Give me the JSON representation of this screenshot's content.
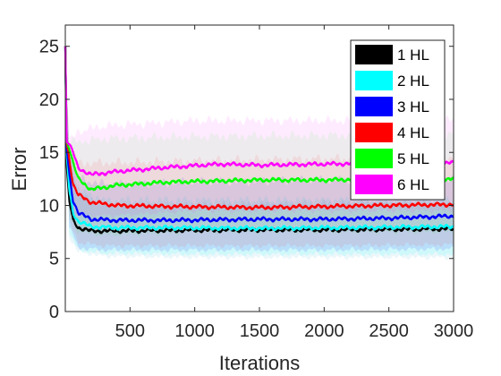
{
  "chart_data": {
    "type": "line",
    "xlabel": "Iterations",
    "ylabel": "Error",
    "xlim": [
      0,
      3000
    ],
    "ylim": [
      0,
      27
    ],
    "xticks": [
      500,
      1000,
      1500,
      2000,
      2500,
      3000
    ],
    "yticks": [
      0,
      5,
      10,
      15,
      20,
      25
    ],
    "x_tick_labels": [
      "500",
      "1000",
      "1500",
      "2000",
      "2500",
      "3000"
    ],
    "y_tick_labels": [
      "0",
      "5",
      "10",
      "15",
      "20",
      "25"
    ],
    "grid": false,
    "legend_position": "top-right",
    "series": [
      {
        "name": "1 HL",
        "color": "#000000",
        "band_color": "#9ad8e8",
        "band_opacity": 0.2,
        "points": [
          [
            0,
            25
          ],
          [
            10,
            14
          ],
          [
            30,
            10.5
          ],
          [
            60,
            8.6
          ],
          [
            100,
            7.9
          ],
          [
            200,
            7.6
          ],
          [
            400,
            7.6
          ],
          [
            800,
            7.65
          ],
          [
            1500,
            7.7
          ],
          [
            2000,
            7.7
          ],
          [
            2500,
            7.75
          ],
          [
            3000,
            7.8
          ]
        ],
        "band_upper": [
          [
            0,
            25
          ],
          [
            30,
            14
          ],
          [
            100,
            11
          ],
          [
            300,
            10
          ],
          [
            1000,
            10
          ],
          [
            2000,
            10.2
          ],
          [
            3000,
            10.2
          ]
        ],
        "band_lower": [
          [
            0,
            25
          ],
          [
            30,
            7
          ],
          [
            100,
            5.6
          ],
          [
            300,
            5.2
          ],
          [
            1000,
            5.1
          ],
          [
            2000,
            5.1
          ],
          [
            3000,
            5.1
          ]
        ]
      },
      {
        "name": "2 HL",
        "color": "#00ffff",
        "band_color": "#00ffff",
        "band_opacity": 0.12,
        "points": [
          [
            0,
            25
          ],
          [
            10,
            15
          ],
          [
            30,
            11.5
          ],
          [
            60,
            9.3
          ],
          [
            100,
            8.5
          ],
          [
            200,
            8.0
          ],
          [
            400,
            7.9
          ],
          [
            800,
            7.9
          ],
          [
            1500,
            7.85
          ],
          [
            2000,
            7.9
          ],
          [
            2500,
            7.95
          ],
          [
            3000,
            8.0
          ]
        ],
        "band_upper": [
          [
            0,
            25
          ],
          [
            30,
            15
          ],
          [
            100,
            11.5
          ],
          [
            300,
            10.5
          ],
          [
            1000,
            10.5
          ],
          [
            2000,
            10.5
          ],
          [
            3000,
            10.6
          ]
        ],
        "band_lower": [
          [
            0,
            25
          ],
          [
            30,
            7.5
          ],
          [
            100,
            5.8
          ],
          [
            300,
            5.5
          ],
          [
            1000,
            5.4
          ],
          [
            2000,
            5.4
          ],
          [
            3000,
            5.4
          ]
        ]
      },
      {
        "name": "3 HL",
        "color": "#0000ff",
        "band_color": "#0000ff",
        "band_opacity": 0.1,
        "points": [
          [
            0,
            25
          ],
          [
            10,
            15.5
          ],
          [
            30,
            13
          ],
          [
            60,
            10.5
          ],
          [
            100,
            9.3
          ],
          [
            200,
            8.7
          ],
          [
            400,
            8.6
          ],
          [
            800,
            8.6
          ],
          [
            1500,
            8.7
          ],
          [
            2000,
            8.7
          ],
          [
            2500,
            8.8
          ],
          [
            3000,
            9.0
          ]
        ],
        "band_upper": [
          [
            0,
            25
          ],
          [
            30,
            15.5
          ],
          [
            100,
            12.5
          ],
          [
            300,
            12
          ],
          [
            1000,
            12.2
          ],
          [
            2000,
            12.4
          ],
          [
            3000,
            12.6
          ]
        ],
        "band_lower": [
          [
            0,
            25
          ],
          [
            30,
            8
          ],
          [
            100,
            6
          ],
          [
            300,
            5.8
          ],
          [
            1000,
            5.8
          ],
          [
            2000,
            5.8
          ],
          [
            3000,
            5.9
          ]
        ]
      },
      {
        "name": "4 HL",
        "color": "#ff0000",
        "band_color": "#ff0000",
        "band_opacity": 0.08,
        "points": [
          [
            0,
            25
          ],
          [
            10,
            16
          ],
          [
            30,
            14.5
          ],
          [
            60,
            12
          ],
          [
            100,
            11
          ],
          [
            200,
            10.3
          ],
          [
            400,
            10.0
          ],
          [
            800,
            9.9
          ],
          [
            1500,
            9.8
          ],
          [
            2000,
            9.9
          ],
          [
            2500,
            10.0
          ],
          [
            3000,
            10.1
          ]
        ],
        "band_upper": [
          [
            0,
            25
          ],
          [
            30,
            16
          ],
          [
            100,
            14
          ],
          [
            300,
            14
          ],
          [
            1000,
            14.2
          ],
          [
            2000,
            14.4
          ],
          [
            3000,
            14.5
          ]
        ],
        "band_lower": [
          [
            0,
            25
          ],
          [
            30,
            8.5
          ],
          [
            100,
            6.5
          ],
          [
            300,
            6.2
          ],
          [
            1000,
            6.2
          ],
          [
            2000,
            6.2
          ],
          [
            3000,
            6.3
          ]
        ]
      },
      {
        "name": "5 HL",
        "color": "#00ff00",
        "band_color": "#00ff00",
        "band_opacity": 0.07,
        "points": [
          [
            0,
            25
          ],
          [
            10,
            16
          ],
          [
            30,
            15.5
          ],
          [
            60,
            14
          ],
          [
            100,
            12.5
          ],
          [
            200,
            11.5
          ],
          [
            400,
            11.9
          ],
          [
            800,
            12.2
          ],
          [
            1500,
            12.4
          ],
          [
            2000,
            12.4
          ],
          [
            2500,
            12.5
          ],
          [
            3000,
            12.5
          ]
        ],
        "band_upper": [
          [
            0,
            25
          ],
          [
            30,
            16
          ],
          [
            100,
            16
          ],
          [
            300,
            16.3
          ],
          [
            1000,
            16.5
          ],
          [
            2000,
            16.6
          ],
          [
            3000,
            16.7
          ]
        ],
        "band_lower": [
          [
            0,
            25
          ],
          [
            30,
            9
          ],
          [
            100,
            7.5
          ],
          [
            300,
            7.2
          ],
          [
            1000,
            7.5
          ],
          [
            2000,
            7.5
          ],
          [
            3000,
            7.5
          ]
        ]
      },
      {
        "name": "6 HL",
        "color": "#ff00ff",
        "band_color": "#ff00ff",
        "band_opacity": 0.08,
        "points": [
          [
            0,
            25
          ],
          [
            10,
            16
          ],
          [
            30,
            15.8
          ],
          [
            60,
            15
          ],
          [
            100,
            13.5
          ],
          [
            200,
            12.9
          ],
          [
            400,
            13.2
          ],
          [
            800,
            13.6
          ],
          [
            1200,
            13.9
          ],
          [
            1500,
            13.8
          ],
          [
            2000,
            13.9
          ],
          [
            2500,
            14.0
          ],
          [
            3000,
            14.0
          ]
        ],
        "band_upper": [
          [
            0,
            25
          ],
          [
            30,
            16
          ],
          [
            100,
            17
          ],
          [
            300,
            17.5
          ],
          [
            1000,
            18
          ],
          [
            2000,
            18
          ],
          [
            3000,
            18
          ]
        ],
        "band_lower": [
          [
            0,
            25
          ],
          [
            30,
            10
          ],
          [
            100,
            9
          ],
          [
            300,
            9
          ],
          [
            1000,
            9.5
          ],
          [
            2000,
            9.5
          ],
          [
            3000,
            9.5
          ]
        ]
      }
    ]
  }
}
